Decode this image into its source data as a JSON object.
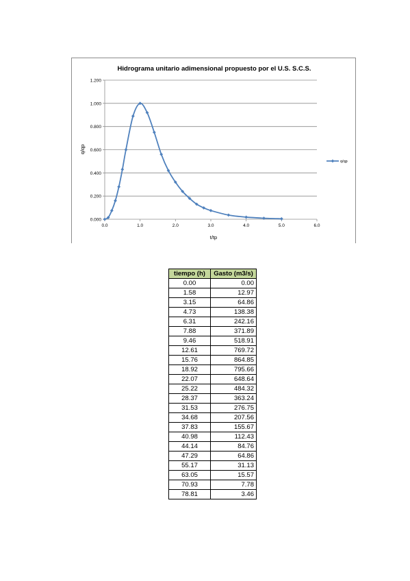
{
  "chart_data": {
    "type": "line",
    "title": "Hidrograma unitario adimensional propuesto por el U.S. S.C.S.",
    "xlabel": "t/tp",
    "ylabel": "q/qp",
    "xlim": [
      0,
      6
    ],
    "ylim": [
      0,
      1.2
    ],
    "x_ticks": [
      "0.0",
      "1.0",
      "2.0",
      "3.0",
      "4.0",
      "5.0",
      "6.0"
    ],
    "y_ticks": [
      "0.000",
      "0.200",
      "0.400",
      "0.600",
      "0.800",
      "1.000",
      "1.200"
    ],
    "grid": true,
    "legend_position": "right",
    "series": [
      {
        "name": "q/qp",
        "color": "#4f81bd",
        "x": [
          0,
          0.1,
          0.2,
          0.3,
          0.4,
          0.5,
          0.6,
          0.8,
          1.0,
          1.2,
          1.4,
          1.6,
          1.8,
          2.0,
          2.2,
          2.4,
          2.6,
          2.8,
          3.0,
          3.5,
          4.0,
          4.5,
          5.0
        ],
        "values": [
          0,
          0.015,
          0.075,
          0.16,
          0.28,
          0.43,
          0.6,
          0.89,
          1.0,
          0.92,
          0.75,
          0.56,
          0.42,
          0.32,
          0.24,
          0.18,
          0.13,
          0.098,
          0.075,
          0.036,
          0.018,
          0.009,
          0.004
        ]
      }
    ]
  },
  "table": {
    "headers": [
      "tiempo (h)",
      "Gasto (m3/s)"
    ],
    "rows": [
      [
        "0.00",
        "0.00"
      ],
      [
        "1.58",
        "12.97"
      ],
      [
        "3.15",
        "64.86"
      ],
      [
        "4.73",
        "138.38"
      ],
      [
        "6.31",
        "242.16"
      ],
      [
        "7.88",
        "371.89"
      ],
      [
        "9.46",
        "518.91"
      ],
      [
        "12.61",
        "769.72"
      ],
      [
        "15.76",
        "864.85"
      ],
      [
        "18.92",
        "795.66"
      ],
      [
        "22.07",
        "648.64"
      ],
      [
        "25.22",
        "484.32"
      ],
      [
        "28.37",
        "363.24"
      ],
      [
        "31.53",
        "276.75"
      ],
      [
        "34.68",
        "207.56"
      ],
      [
        "37.83",
        "155.67"
      ],
      [
        "40.98",
        "112.43"
      ],
      [
        "44.14",
        "84.76"
      ],
      [
        "47.29",
        "64.86"
      ],
      [
        "55.17",
        "31.13"
      ],
      [
        "63.05",
        "15.57"
      ],
      [
        "70.93",
        "7.78"
      ],
      [
        "78.81",
        "3.46"
      ]
    ]
  }
}
